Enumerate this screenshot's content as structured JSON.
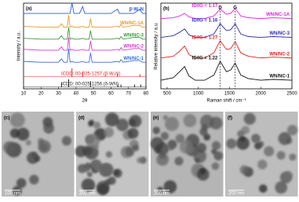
{
  "chart_data": [
    {
      "type": "line",
      "panel_label": "(a)",
      "xlabel": "2θ",
      "ylabel": "Intensity / a.u.",
      "xlim": [
        10,
        80
      ],
      "xticks": [
        10,
        20,
        30,
        40,
        50,
        60,
        70,
        80
      ],
      "ylim": [
        0,
        100
      ],
      "x": [
        10,
        20,
        30,
        31.7,
        33,
        35,
        35.8,
        36.6,
        37.7,
        38.8,
        42,
        43.8,
        45,
        47.5,
        48.3,
        49.2,
        60,
        63.7,
        64.8,
        65.7,
        67,
        73,
        76.5,
        78,
        80
      ],
      "series": [
        {
          "name": "β-W₂N",
          "color": "#2a5bd7",
          "values": [
            88,
            88,
            88,
            88,
            88,
            88,
            88,
            88,
            100,
            88,
            88,
            96,
            88,
            88,
            88,
            88,
            88,
            93,
            88,
            88,
            88,
            88,
            93,
            88,
            88
          ]
        },
        {
          "name": "WN/NC-1A",
          "color": "#e69a2e",
          "values": [
            73,
            72,
            72,
            76,
            72,
            72,
            86,
            72,
            73,
            72,
            72,
            73,
            72,
            72,
            82,
            72,
            72,
            73,
            72,
            75,
            72,
            74,
            74,
            72,
            72
          ]
        },
        {
          "name": "WN/NC-3",
          "color": "#3a9a3a",
          "values": [
            59,
            58,
            58,
            62,
            58,
            58,
            72,
            58,
            59,
            58,
            58,
            59,
            58,
            58,
            68,
            58,
            58,
            59,
            58,
            61,
            58,
            60,
            60,
            58,
            58
          ]
        },
        {
          "name": "WN/NC-2",
          "color": "#d23ad2",
          "values": [
            46,
            45,
            45,
            49,
            45,
            45,
            60,
            45,
            46,
            45,
            45,
            46,
            45,
            45,
            56,
            45,
            45,
            46,
            45,
            48,
            45,
            47,
            47,
            45,
            45
          ]
        },
        {
          "name": "WN/NC-1",
          "color": "#3a6ee0",
          "values": [
            32,
            31,
            31,
            35,
            31,
            31,
            47,
            31,
            32,
            31,
            31,
            32,
            31,
            31,
            42,
            31,
            31,
            32,
            31,
            34,
            31,
            33,
            33,
            31,
            31
          ]
        }
      ],
      "references": [
        {
          "name": "ICDD: 00-025-1257 (β-W₂N)",
          "color": "#e02020",
          "x": [
            37.7,
            43.8,
            63.7,
            76.5
          ],
          "values": [
            10,
            6,
            3,
            3
          ]
        },
        {
          "name": "ICDD: 00-025-1256 (δ-WN)",
          "color": "#222222",
          "x": [
            31.7,
            35.8,
            48.3,
            64,
            65.7,
            73.5,
            77
          ],
          "values": [
            5,
            9,
            7,
            3,
            3,
            3,
            3
          ]
        }
      ]
    },
    {
      "type": "line",
      "panel_label": "(b)",
      "xlabel": "Raman shift / cm⁻¹",
      "ylabel": "Relative intensity / a.u.",
      "xlim": [
        400,
        2500
      ],
      "xticks": [
        500,
        1000,
        1500,
        2000,
        2500
      ],
      "ylim": [
        0,
        100
      ],
      "x": [
        400,
        600,
        700,
        780,
        850,
        950,
        1100,
        1250,
        1350,
        1450,
        1520,
        1590,
        1680,
        1800,
        2000,
        2200,
        2500
      ],
      "series": [
        {
          "name": "WN/NC-1A",
          "color": "#e020e0",
          "values": [
            82,
            83,
            85,
            88,
            84,
            82,
            82,
            85,
            93,
            87,
            88,
            94,
            85,
            83,
            82,
            83,
            82
          ]
        },
        {
          "name": "WN/NC-3",
          "color": "#2a2ab0",
          "values": [
            60,
            62,
            66,
            70,
            63,
            60,
            60,
            64,
            76,
            68,
            69,
            76,
            64,
            61,
            60,
            61,
            60
          ]
        },
        {
          "name": "WN/NC-2",
          "color": "#e02020",
          "values": [
            36,
            38,
            44,
            50,
            40,
            36,
            36,
            42,
            56,
            46,
            47,
            55,
            42,
            38,
            36,
            37,
            36
          ]
        },
        {
          "name": "WN/NC-1",
          "color": "#111111",
          "values": [
            10,
            13,
            20,
            26,
            15,
            10,
            10,
            16,
            32,
            20,
            22,
            30,
            16,
            12,
            10,
            11,
            10
          ]
        }
      ],
      "annotations": [
        "ID/IG = 1.17",
        "ID/IG = 1.16",
        "ID/IG = 1.27",
        "ID/IG = 1.22"
      ],
      "peaks": [
        {
          "label": "D",
          "x": 1350
        },
        {
          "label": "G",
          "x": 1590
        }
      ]
    }
  ],
  "images": [
    {
      "label": "(c)",
      "scale_bar": "100 nm"
    },
    {
      "label": "(d)",
      "scale_bar": "200 nm"
    },
    {
      "label": "(e)",
      "scale_bar": "200 nm"
    },
    {
      "label": "(f)",
      "scale_bar": "200 nm"
    }
  ]
}
